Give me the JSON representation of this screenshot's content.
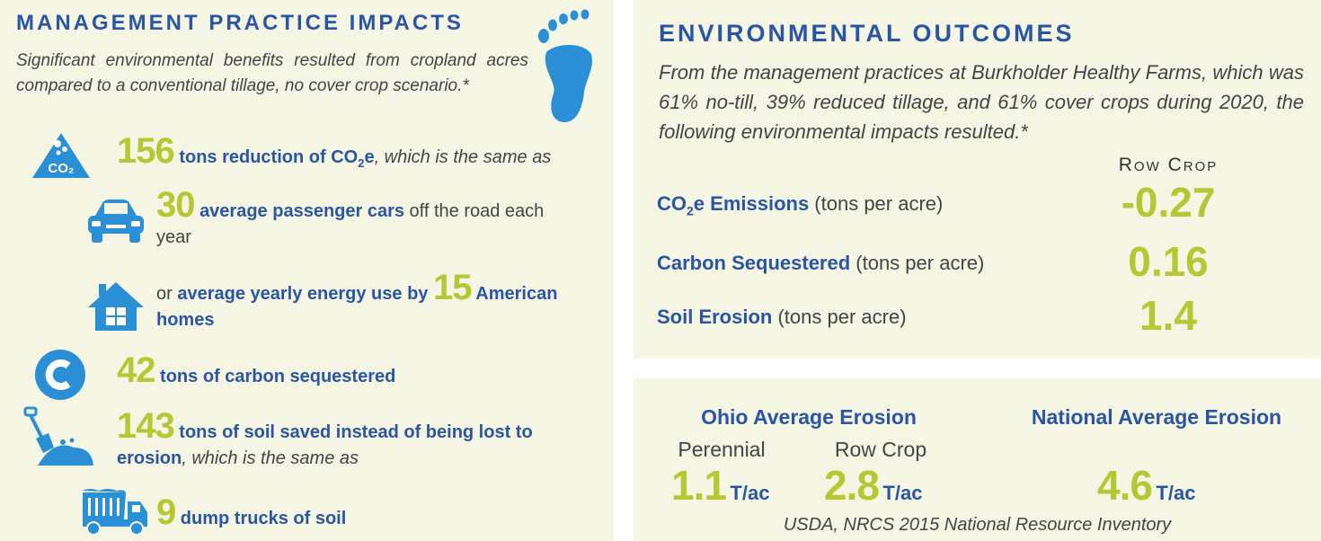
{
  "left": {
    "title": "Management Practice Impacts",
    "intro": "Significant environmental benefits resulted from cropland acres compared to a conventional tillage, no cover crop scenario.*",
    "co2": {
      "value": "156",
      "bold": "tons reduction of CO",
      "sub": "2",
      "boldEnd": "e",
      "rest": ", which is the same as"
    },
    "cars": {
      "value": "30",
      "bold": "average passenger cars",
      "rest": " off the road each year"
    },
    "homes": {
      "pre": "or ",
      "bold": "average yearly energy use by ",
      "value": "15",
      "bold2": " American homes"
    },
    "carbon": {
      "value": "42",
      "bold": " tons of carbon sequestered"
    },
    "soil": {
      "value": "143",
      "bold": " tons of soil saved instead of being lost to erosion",
      "rest": ", which is the same as"
    },
    "trucks": {
      "value": "9",
      "bold": " dump trucks of soil"
    },
    "icons": [
      "footprint-icon",
      "co2-icon",
      "car-icon",
      "house-icon",
      "carbon-icon",
      "shovel-icon",
      "dump-truck-icon"
    ]
  },
  "outcomes": {
    "title": "Environmental Outcomes",
    "intro": "From the management practices at Burkholder Healthy Farms, which was 61% no-till, 39% reduced tillage, and 61% cover crops during 2020, the following environmental impacts resulted.*",
    "column": "Row Crop",
    "rows": [
      {
        "label_a": "CO",
        "label_sub": "2",
        "label_b": "e Emissions",
        "unit": " (tons per acre)",
        "value": "-0.27"
      },
      {
        "label_a": "Carbon Sequestered",
        "label_sub": "",
        "label_b": "",
        "unit": " (tons per acre)",
        "value": "0.16"
      },
      {
        "label_a": "Soil Erosion",
        "label_sub": "",
        "label_b": "",
        "unit": " (tons per acre)",
        "value": "1.4"
      }
    ]
  },
  "erosion": {
    "ohio_title": "Ohio Average Erosion",
    "national_title": "National Average Erosion",
    "perennial_label": "Perennial",
    "rowcrop_label": "Row Crop",
    "perennial_value": "1.1",
    "rowcrop_value": "2.8",
    "national_value": "4.6",
    "unit": "T/ac",
    "source": "USDA, NRCS 2015 National Resource Inventory"
  },
  "colors": {
    "blue": "#2a55a4",
    "green": "#b5c833",
    "icon": "#2b8fd6",
    "panel": "#f5f5e3"
  }
}
